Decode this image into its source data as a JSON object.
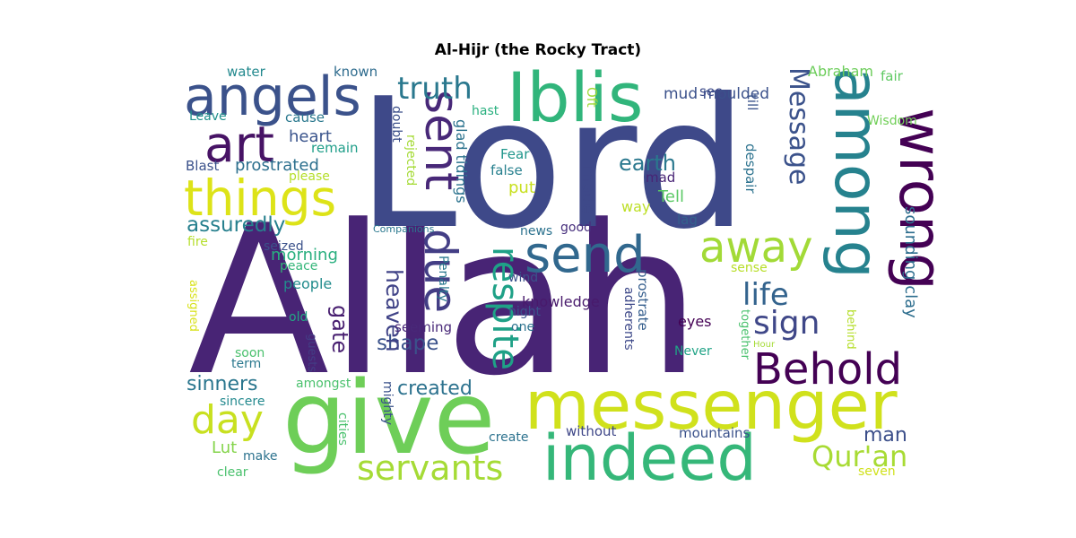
{
  "chart_data": {
    "type": "wordcloud",
    "title": "Al-Hijr (the Rocky Tract)",
    "colormap": "viridis",
    "words": [
      {
        "text": "Allah",
        "color": "#482475"
      },
      {
        "text": "Lord",
        "color": "#3e4989"
      },
      {
        "text": "give",
        "color": "#6ece58"
      },
      {
        "text": "messenger",
        "color": "#d0e11c"
      },
      {
        "text": "indeed",
        "color": "#35b779"
      },
      {
        "text": "Iblis",
        "color": "#31b57b"
      },
      {
        "text": "angels",
        "color": "#3b528b"
      },
      {
        "text": "wrong",
        "color": "#440154"
      },
      {
        "text": "among",
        "color": "#26828e"
      },
      {
        "text": "things",
        "color": "#dde318"
      },
      {
        "text": "art",
        "color": "#471365"
      },
      {
        "text": "sent",
        "color": "#482878"
      },
      {
        "text": "send",
        "color": "#31688e"
      },
      {
        "text": "away",
        "color": "#a2da37"
      },
      {
        "text": "due",
        "color": "#433e85"
      },
      {
        "text": "Behold",
        "color": "#440154"
      },
      {
        "text": "day",
        "color": "#c8e020"
      },
      {
        "text": "servants",
        "color": "#a5db36"
      },
      {
        "text": "respite",
        "color": "#1fa187"
      },
      {
        "text": "truth",
        "color": "#2a788e"
      },
      {
        "text": "Message",
        "color": "#3b528b"
      },
      {
        "text": "sign",
        "color": "#3f4788"
      },
      {
        "text": "life",
        "color": "#33638d"
      },
      {
        "text": "Qur'an",
        "color": "#a8db34"
      },
      {
        "text": "earth",
        "color": "#2a788e"
      },
      {
        "text": "assuredly",
        "color": "#27808e"
      },
      {
        "text": "shape",
        "color": "#3b528b"
      },
      {
        "text": "heaven",
        "color": "#404387"
      },
      {
        "text": "created",
        "color": "#2c728e"
      },
      {
        "text": "sinners",
        "color": "#2a768e"
      },
      {
        "text": "man",
        "color": "#3c4f8a"
      },
      {
        "text": "made",
        "color": "#3e4989"
      },
      {
        "text": "gate",
        "color": "#481f70"
      },
      {
        "text": "prostrated",
        "color": "#2d708e"
      },
      {
        "text": "mud moulded",
        "color": "#3b518b"
      },
      {
        "text": "sounding clay",
        "color": "#2e6e8e"
      },
      {
        "text": "glad tidings",
        "color": "#2c738e"
      },
      {
        "text": "Tell",
        "color": "#5ac864"
      },
      {
        "text": "heart",
        "color": "#3a548c"
      },
      {
        "text": "morning",
        "color": "#29af7f"
      },
      {
        "text": "put",
        "color": "#c8e020"
      },
      {
        "text": "Lut",
        "color": "#84d44b"
      },
      {
        "text": "knowledge",
        "color": "#481a6c"
      },
      {
        "text": "people",
        "color": "#228c8d"
      },
      {
        "text": "Abraham",
        "color": "#6ccd5a"
      },
      {
        "text": "water",
        "color": "#23898e"
      },
      {
        "text": "known",
        "color": "#2f6c8e"
      },
      {
        "text": "fair",
        "color": "#5ec962"
      },
      {
        "text": "Leave",
        "color": "#21918c"
      },
      {
        "text": "cause",
        "color": "#2a788e"
      },
      {
        "text": "hast",
        "color": "#2ab07f"
      },
      {
        "text": "see",
        "color": "#3e4c8a"
      },
      {
        "text": "till",
        "color": "#3a538b"
      },
      {
        "text": "Wisdom",
        "color": "#70cf57"
      },
      {
        "text": "remain",
        "color": "#1f9e89"
      },
      {
        "text": "doubt",
        "color": "#3c4f8a"
      },
      {
        "text": "Fear",
        "color": "#1f968b"
      },
      {
        "text": "Oft",
        "color": "#a0da39"
      },
      {
        "text": "Blast",
        "color": "#3b528b"
      },
      {
        "text": "please",
        "color": "#b5de2b"
      },
      {
        "text": "rejected",
        "color": "#a5db36"
      },
      {
        "text": "false",
        "color": "#27808e"
      },
      {
        "text": "mad",
        "color": "#482475"
      },
      {
        "text": "despair",
        "color": "#2c728e"
      },
      {
        "text": "way",
        "color": "#bddf26"
      },
      {
        "text": "lag",
        "color": "#34618d"
      },
      {
        "text": "fire",
        "color": "#b5de2b"
      },
      {
        "text": "Companions",
        "color": "#2a788e"
      },
      {
        "text": "good",
        "color": "#472f7d"
      },
      {
        "text": "news",
        "color": "#2c728e"
      },
      {
        "text": "seized",
        "color": "#3b528b"
      },
      {
        "text": "peace",
        "color": "#34b679"
      },
      {
        "text": "sense",
        "color": "#b8de29"
      },
      {
        "text": "assigned",
        "color": "#d8e219"
      },
      {
        "text": "wind",
        "color": "#3b528b"
      },
      {
        "text": "Penalty",
        "color": "#2a788e"
      },
      {
        "text": "prostrate",
        "color": "#355e8d"
      },
      {
        "text": "adherents",
        "color": "#3e4989"
      },
      {
        "text": "old",
        "color": "#22a884"
      },
      {
        "text": "seeming",
        "color": "#482878"
      },
      {
        "text": "night",
        "color": "#3b528b"
      },
      {
        "text": "one",
        "color": "#2c728e"
      },
      {
        "text": "eyes",
        "color": "#440154"
      },
      {
        "text": "together",
        "color": "#4ac16d"
      },
      {
        "text": "behind",
        "color": "#b5de2b"
      },
      {
        "text": "Hour",
        "color": "#a5db36"
      },
      {
        "text": "soon",
        "color": "#4ac16d"
      },
      {
        "text": "term",
        "color": "#2a788e"
      },
      {
        "text": "guests",
        "color": "#433e85"
      },
      {
        "text": "Never",
        "color": "#20a386"
      },
      {
        "text": "sincere",
        "color": "#23898e"
      },
      {
        "text": "amongst",
        "color": "#4ac16d"
      },
      {
        "text": "mighty",
        "color": "#3b528b"
      },
      {
        "text": "cities",
        "color": "#4ac16d"
      },
      {
        "text": "create",
        "color": "#2c728e"
      },
      {
        "text": "without",
        "color": "#3f4788"
      },
      {
        "text": "mountains",
        "color": "#3b528b"
      },
      {
        "text": "make",
        "color": "#2c728e"
      },
      {
        "text": "clear",
        "color": "#4ac16d"
      },
      {
        "text": "seven",
        "color": "#d0e11c"
      }
    ]
  }
}
